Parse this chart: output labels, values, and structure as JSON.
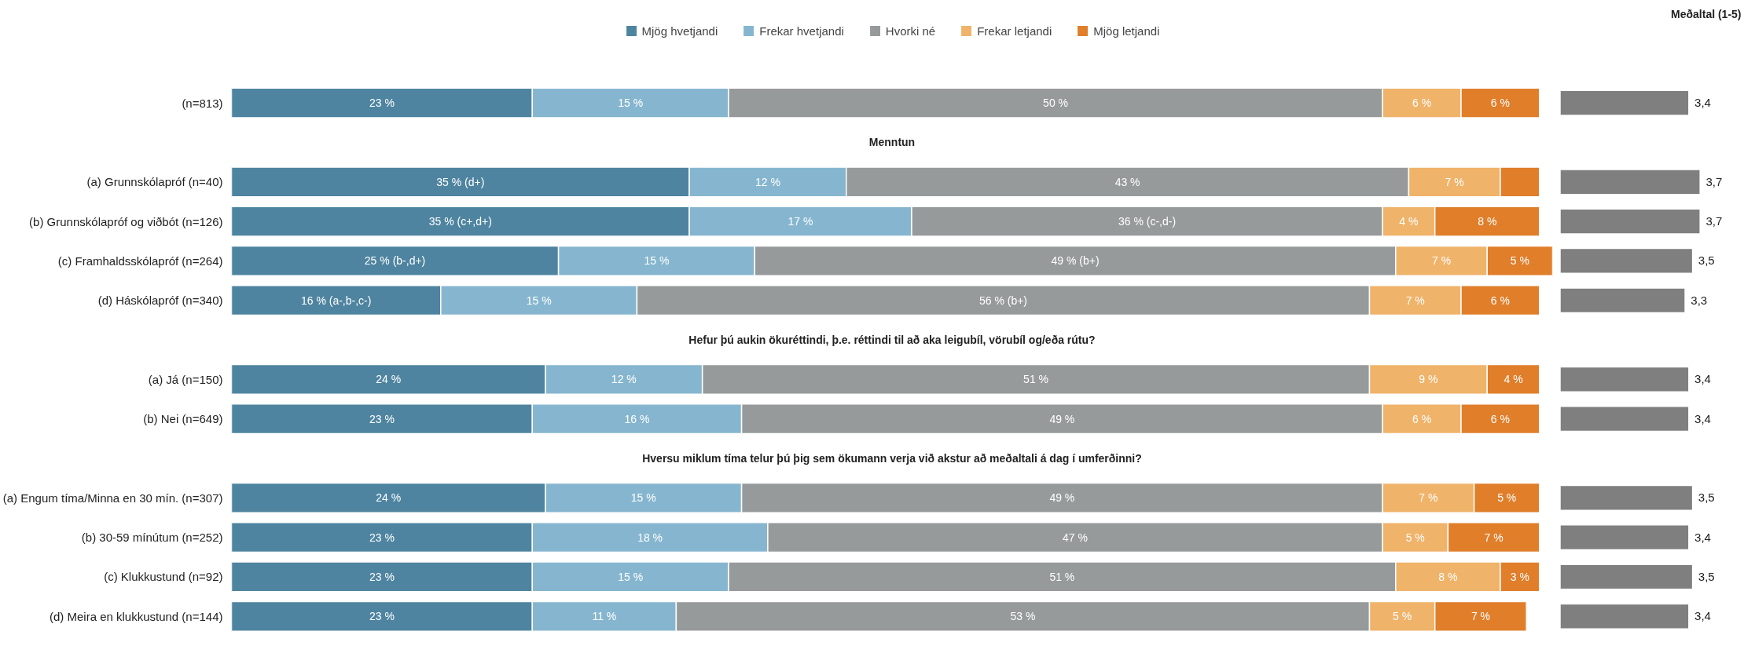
{
  "chart_data": [
    {
      "type": "bar",
      "orientation": "horizontal",
      "stacked": true,
      "legend": "top",
      "grid": false,
      "tick_labels": "y",
      "categories": [
        "(n=813)",
        null,
        "(a) Grunnskólapróf (n=40)",
        "(b) Grunnskólapróf og viðbót (n=126)",
        "(c) Framhaldsskólapróf (n=264)",
        "(d) Háskólapróf (n=340)",
        null,
        "(a) Já (n=150)",
        "(b) Nei (n=649)",
        null,
        "(a) Engum tíma/Minna en 30 mín. (n=307)",
        "(b) 30-59 mínútum (n=252)",
        "(c) Klukkustund (n=92)",
        "(d) Meira en klukkustund (n=144)"
      ],
      "annotations": [
        "Menntun",
        "Hefur þú aukin ökuréttindi, þ.e. réttindi til að aka leigubíl, vörubíl og/eða rútu?",
        "Hversu miklum tíma telur þú þig sem ökumann verja við akstur að meðaltali á dag í umferðinni?"
      ],
      "series": [
        {
          "name": "Mjög hvetjandi",
          "color": "#4e84a0",
          "values": [
            23,
            null,
            35,
            35,
            25,
            16,
            null,
            24,
            23,
            null,
            24,
            23,
            23,
            23
          ],
          "value_labels": [
            "23 %",
            null,
            "35 % (d+)",
            "35 % (c+,d+)",
            "25 % (b-,d+)",
            "16 % (a-,b-,c-)",
            null,
            "24 %",
            "23 %",
            null,
            "24 %",
            "23 %",
            "23 %",
            "23 %"
          ]
        },
        {
          "name": "Frekar hvetjandi",
          "color": "#86b6cf",
          "values": [
            15,
            null,
            12,
            17,
            15,
            15,
            null,
            12,
            16,
            null,
            15,
            18,
            15,
            11
          ],
          "value_labels": [
            "15 %",
            null,
            "12 %",
            "17 %",
            "15 %",
            "15 %",
            null,
            "12 %",
            "16 %",
            null,
            "15 %",
            "18 %",
            "15 %",
            "11 %"
          ]
        },
        {
          "name": "Hvorki né",
          "color": "#969a9b",
          "values": [
            50,
            null,
            43,
            36,
            49,
            56,
            null,
            51,
            49,
            null,
            49,
            47,
            51,
            53
          ],
          "value_labels": [
            "50 %",
            null,
            "43 %",
            "36 % (c-,d-)",
            "49 % (b+)",
            "56 % (b+)",
            null,
            "51 %",
            "49 %",
            null,
            "49 %",
            "47 %",
            "51 %",
            "53 %"
          ]
        },
        {
          "name": "Frekar letjandi",
          "color": "#f0b36a",
          "values": [
            6,
            null,
            7,
            4,
            7,
            7,
            null,
            9,
            6,
            null,
            7,
            5,
            8,
            5
          ],
          "value_labels": [
            "6 %",
            null,
            "7 %",
            "4 %",
            "7 %",
            "7 %",
            null,
            "9 %",
            "6 %",
            null,
            "7 %",
            "5 %",
            "8 %",
            "5 %"
          ]
        },
        {
          "name": "Mjög letjandi",
          "color": "#e07e2a",
          "values": [
            6,
            null,
            3,
            8,
            5,
            6,
            null,
            4,
            6,
            null,
            5,
            7,
            3,
            7
          ],
          "value_labels": [
            "6 %",
            null,
            null,
            "8 %",
            "5 %",
            "6 %",
            null,
            "4 %",
            "6 %",
            null,
            "5 %",
            "7 %",
            "3 %",
            "7 %"
          ]
        }
      ]
    },
    {
      "type": "bar",
      "orientation": "horizontal",
      "title": "Meðaltal (1-5)",
      "tick_labels": false,
      "grid": false,
      "color": "#7f7f7f",
      "categories": [
        null,
        null,
        null,
        null,
        null,
        null,
        null,
        null,
        null,
        null,
        null,
        null,
        null,
        null
      ],
      "values": [
        3.4,
        null,
        3.7,
        3.7,
        3.5,
        3.3,
        null,
        3.4,
        3.4,
        null,
        3.5,
        3.4,
        3.5,
        3.4
      ],
      "value_labels": [
        "3,4",
        null,
        "3,7",
        "3,7",
        "3,5",
        "3,3",
        null,
        "3,4",
        "3,4",
        null,
        "3,5",
        "3,4",
        "3,5",
        "3,4"
      ]
    }
  ]
}
